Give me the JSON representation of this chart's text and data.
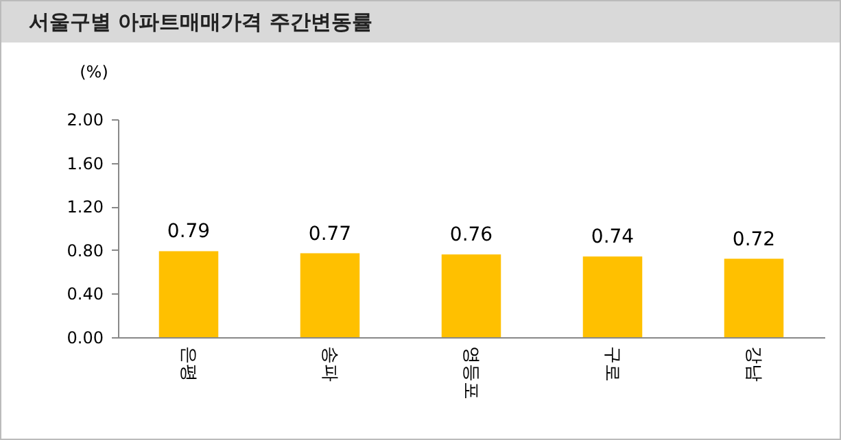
{
  "chart_data": {
    "type": "bar",
    "title": "서울구별 아파트매매가격 주간변동률",
    "ylabel": "(%)",
    "categories": [
      "은평",
      "송파",
      "영등포",
      "구로",
      "강남"
    ],
    "values": [
      0.79,
      0.77,
      0.76,
      0.74,
      0.72
    ],
    "color": "#ffc000",
    "ylim": [
      0,
      2
    ],
    "yticks": [
      {
        "value": 0,
        "label": "0.00"
      },
      {
        "value": 0.4,
        "label": "0.40"
      },
      {
        "value": 0.8,
        "label": "0.80"
      },
      {
        "value": 1.2,
        "label": "1.20"
      },
      {
        "value": 1.6,
        "label": "1.60"
      },
      {
        "value": 2,
        "label": "2.00"
      }
    ],
    "grid": false,
    "data_labels": true
  }
}
